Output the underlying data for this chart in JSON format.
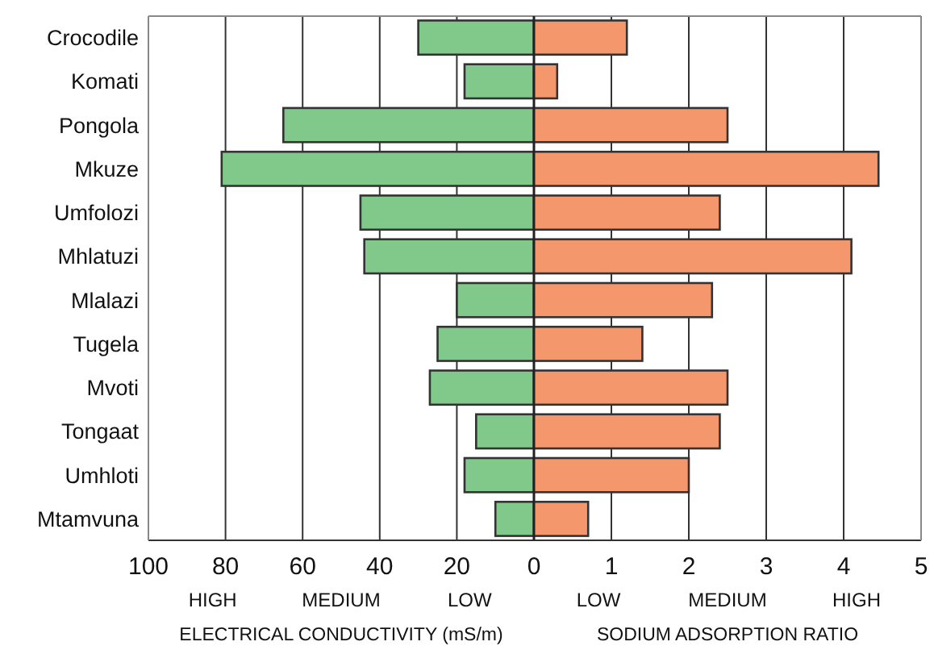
{
  "chart_data": [
    {
      "type": "bar",
      "orientation": "horizontal",
      "categories": [
        "Crocodile",
        "Komati",
        "Pongola",
        "Mkuze",
        "Umfolozi",
        "Mhlatuzi",
        "Mlalazi",
        "Tugela",
        "Mvoti",
        "Tongaat",
        "Umhloti",
        "Mtamvuna"
      ],
      "values": [
        30,
        18,
        65,
        81,
        45,
        44,
        20,
        25,
        27,
        15,
        18,
        10
      ],
      "color": "#80c98a",
      "xlim": [
        100,
        0
      ],
      "xticks": [
        100,
        80,
        60,
        40,
        20,
        {
          "value": 0,
          "label": null
        }
      ],
      "grid": "x",
      "xlabel": "ELECTRICAL CONDUCTIVITY (mS/m)",
      "annotations": [
        "HIGH",
        "MEDIUM",
        "LOW"
      ]
    },
    {
      "type": "bar",
      "orientation": "horizontal",
      "categories": [
        null,
        null,
        null,
        null,
        null,
        null,
        null,
        null,
        null,
        null,
        null,
        null
      ],
      "values": [
        1.2,
        0.3,
        2.5,
        4.45,
        2.4,
        4.1,
        2.3,
        1.4,
        2.5,
        2.4,
        2.0,
        0.7
      ],
      "color": "#f4976c",
      "xlim": [
        0,
        5
      ],
      "xticks": [
        0,
        1,
        2,
        3,
        4,
        5
      ],
      "grid": "x",
      "tick_labels": "x",
      "xlabel": "SODIUM  ADSORPTION  RATIO",
      "annotations": [
        "LOW",
        "MEDIUM",
        "HIGH"
      ]
    }
  ]
}
